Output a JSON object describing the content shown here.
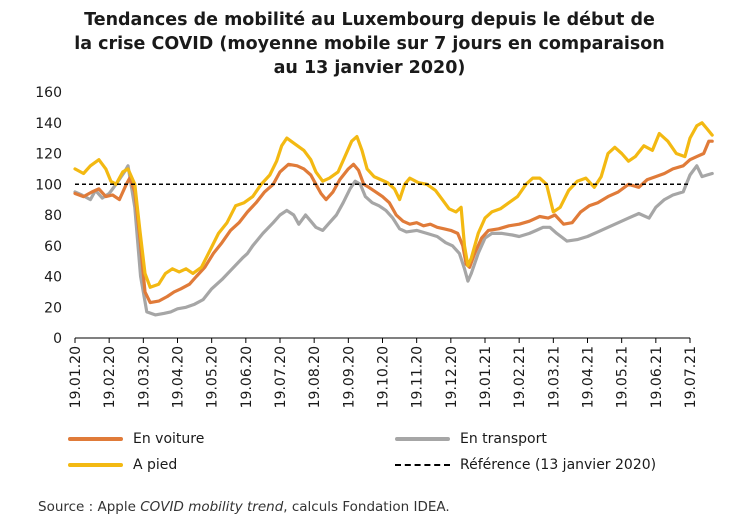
{
  "chart_data": {
    "type": "line",
    "title_lines": [
      "Tendances de mobilité au Luxembourg depuis le début de",
      "la crise COVID (moyenne mobile sur 7 jours en comparaison",
      "au 13 janvier 2020)"
    ],
    "ylim": [
      0,
      160
    ],
    "yticks": [
      "0",
      "20",
      "40",
      "60",
      "80",
      "100",
      "120",
      "140",
      "160"
    ],
    "reference_value": 100,
    "x_start": "2020-01-19",
    "x_end": "2021-07-19",
    "x_tick_labels": [
      "19.01.20",
      "19.02.20",
      "19.03.20",
      "19.04.20",
      "19.05.20",
      "19.06.20",
      "19.07.20",
      "19.08.20",
      "19.09.20",
      "19.10.20",
      "19.11.20",
      "19.12.20",
      "19.01.21",
      "19.02.21",
      "19.03.21",
      "19.04.21",
      "19.05.21",
      "19.06.21",
      "19.07.21"
    ],
    "series": [
      {
        "name": "En transport",
        "color": "#a6a6a6",
        "points": [
          [
            0,
            95
          ],
          [
            0.2,
            93
          ],
          [
            0.45,
            90
          ],
          [
            0.6,
            96
          ],
          [
            0.8,
            91
          ],
          [
            1,
            94
          ],
          [
            1.2,
            100
          ],
          [
            1.45,
            108
          ],
          [
            1.55,
            112
          ],
          [
            1.75,
            85
          ],
          [
            1.92,
            40
          ],
          [
            2.1,
            17
          ],
          [
            2.35,
            15
          ],
          [
            2.6,
            16
          ],
          [
            2.8,
            17
          ],
          [
            3,
            19
          ],
          [
            3.25,
            20
          ],
          [
            3.5,
            22
          ],
          [
            3.75,
            25
          ],
          [
            4,
            32
          ],
          [
            4.3,
            38
          ],
          [
            4.6,
            45
          ],
          [
            4.9,
            52
          ],
          [
            5.05,
            55
          ],
          [
            5.2,
            60
          ],
          [
            5.5,
            68
          ],
          [
            5.8,
            75
          ],
          [
            6,
            80
          ],
          [
            6.2,
            83
          ],
          [
            6.4,
            80
          ],
          [
            6.55,
            74
          ],
          [
            6.75,
            80
          ],
          [
            6.9,
            76
          ],
          [
            7.05,
            72
          ],
          [
            7.25,
            70
          ],
          [
            7.45,
            75
          ],
          [
            7.65,
            80
          ],
          [
            7.85,
            88
          ],
          [
            8.05,
            97
          ],
          [
            8.2,
            102
          ],
          [
            8.35,
            100
          ],
          [
            8.5,
            92
          ],
          [
            8.7,
            88
          ],
          [
            8.9,
            86
          ],
          [
            9.1,
            83
          ],
          [
            9.3,
            78
          ],
          [
            9.5,
            71
          ],
          [
            9.7,
            69
          ],
          [
            10,
            70
          ],
          [
            10.3,
            68
          ],
          [
            10.6,
            66
          ],
          [
            10.85,
            62
          ],
          [
            11.05,
            60
          ],
          [
            11.25,
            55
          ],
          [
            11.4,
            45
          ],
          [
            11.5,
            37
          ],
          [
            11.6,
            42
          ],
          [
            11.8,
            55
          ],
          [
            12,
            65
          ],
          [
            12.2,
            68
          ],
          [
            12.5,
            68
          ],
          [
            12.8,
            67
          ],
          [
            13,
            66
          ],
          [
            13.3,
            68
          ],
          [
            13.5,
            70
          ],
          [
            13.7,
            72
          ],
          [
            13.9,
            72
          ],
          [
            14.1,
            68
          ],
          [
            14.4,
            63
          ],
          [
            14.7,
            64
          ],
          [
            15,
            66
          ],
          [
            15.3,
            69
          ],
          [
            15.6,
            72
          ],
          [
            15.9,
            75
          ],
          [
            16.2,
            78
          ],
          [
            16.5,
            81
          ],
          [
            16.8,
            78
          ],
          [
            17,
            85
          ],
          [
            17.25,
            90
          ],
          [
            17.5,
            93
          ],
          [
            17.8,
            95
          ],
          [
            18,
            106
          ],
          [
            18.2,
            112
          ],
          [
            18.35,
            105
          ],
          [
            18.5,
            106
          ],
          [
            18.65,
            107
          ]
        ]
      },
      {
        "name": "En voiture",
        "color": "#e07b39",
        "points": [
          [
            0,
            94
          ],
          [
            0.25,
            92
          ],
          [
            0.5,
            95
          ],
          [
            0.7,
            97
          ],
          [
            0.9,
            92
          ],
          [
            1.1,
            93
          ],
          [
            1.3,
            90
          ],
          [
            1.5,
            100
          ],
          [
            1.6,
            104
          ],
          [
            1.75,
            95
          ],
          [
            1.9,
            65
          ],
          [
            2.05,
            30
          ],
          [
            2.2,
            23
          ],
          [
            2.45,
            24
          ],
          [
            2.7,
            27
          ],
          [
            2.9,
            30
          ],
          [
            3.1,
            32
          ],
          [
            3.35,
            35
          ],
          [
            3.55,
            40
          ],
          [
            3.8,
            46
          ],
          [
            4.05,
            55
          ],
          [
            4.3,
            62
          ],
          [
            4.55,
            70
          ],
          [
            4.8,
            75
          ],
          [
            5.05,
            82
          ],
          [
            5.3,
            88
          ],
          [
            5.55,
            95
          ],
          [
            5.8,
            100
          ],
          [
            6,
            108
          ],
          [
            6.25,
            113
          ],
          [
            6.5,
            112
          ],
          [
            6.7,
            110
          ],
          [
            6.9,
            106
          ],
          [
            7.05,
            100
          ],
          [
            7.2,
            94
          ],
          [
            7.35,
            90
          ],
          [
            7.55,
            95
          ],
          [
            7.75,
            103
          ],
          [
            8,
            110
          ],
          [
            8.15,
            113
          ],
          [
            8.3,
            109
          ],
          [
            8.45,
            100
          ],
          [
            8.6,
            98
          ],
          [
            8.8,
            95
          ],
          [
            9,
            92
          ],
          [
            9.2,
            88
          ],
          [
            9.4,
            80
          ],
          [
            9.6,
            76
          ],
          [
            9.8,
            74
          ],
          [
            10,
            75
          ],
          [
            10.2,
            73
          ],
          [
            10.4,
            74
          ],
          [
            10.6,
            72
          ],
          [
            10.8,
            71
          ],
          [
            11,
            70
          ],
          [
            11.2,
            68
          ],
          [
            11.35,
            60
          ],
          [
            11.45,
            48
          ],
          [
            11.55,
            46
          ],
          [
            11.7,
            55
          ],
          [
            11.9,
            65
          ],
          [
            12.1,
            70
          ],
          [
            12.4,
            71
          ],
          [
            12.7,
            73
          ],
          [
            13,
            74
          ],
          [
            13.3,
            76
          ],
          [
            13.6,
            79
          ],
          [
            13.85,
            78
          ],
          [
            14.05,
            80
          ],
          [
            14.3,
            74
          ],
          [
            14.55,
            75
          ],
          [
            14.8,
            82
          ],
          [
            15.05,
            86
          ],
          [
            15.3,
            88
          ],
          [
            15.6,
            92
          ],
          [
            15.9,
            95
          ],
          [
            16.2,
            100
          ],
          [
            16.5,
            98
          ],
          [
            16.75,
            103
          ],
          [
            17,
            105
          ],
          [
            17.25,
            107
          ],
          [
            17.5,
            110
          ],
          [
            17.8,
            112
          ],
          [
            18,
            116
          ],
          [
            18.2,
            118
          ],
          [
            18.4,
            120
          ],
          [
            18.55,
            128
          ],
          [
            18.65,
            128
          ]
        ]
      },
      {
        "name": "A pied",
        "color": "#f3b912",
        "points": [
          [
            0,
            110
          ],
          [
            0.25,
            107
          ],
          [
            0.45,
            112
          ],
          [
            0.7,
            116
          ],
          [
            0.9,
            110
          ],
          [
            1.05,
            102
          ],
          [
            1.2,
            100
          ],
          [
            1.4,
            108
          ],
          [
            1.55,
            110
          ],
          [
            1.75,
            100
          ],
          [
            1.9,
            70
          ],
          [
            2.05,
            42
          ],
          [
            2.2,
            33
          ],
          [
            2.45,
            35
          ],
          [
            2.65,
            42
          ],
          [
            2.85,
            45
          ],
          [
            3.05,
            43
          ],
          [
            3.25,
            45
          ],
          [
            3.45,
            42
          ],
          [
            3.7,
            46
          ],
          [
            3.95,
            57
          ],
          [
            4.2,
            68
          ],
          [
            4.45,
            75
          ],
          [
            4.7,
            86
          ],
          [
            4.95,
            88
          ],
          [
            5.2,
            92
          ],
          [
            5.45,
            100
          ],
          [
            5.7,
            106
          ],
          [
            5.9,
            115
          ],
          [
            6.05,
            125
          ],
          [
            6.2,
            130
          ],
          [
            6.45,
            126
          ],
          [
            6.7,
            122
          ],
          [
            6.9,
            116
          ],
          [
            7.05,
            108
          ],
          [
            7.25,
            102
          ],
          [
            7.45,
            104
          ],
          [
            7.7,
            108
          ],
          [
            7.9,
            118
          ],
          [
            8.1,
            128
          ],
          [
            8.25,
            131
          ],
          [
            8.4,
            122
          ],
          [
            8.55,
            110
          ],
          [
            8.75,
            105
          ],
          [
            8.95,
            103
          ],
          [
            9.15,
            101
          ],
          [
            9.35,
            97
          ],
          [
            9.5,
            90
          ],
          [
            9.65,
            100
          ],
          [
            9.8,
            104
          ],
          [
            10.05,
            101
          ],
          [
            10.3,
            100
          ],
          [
            10.55,
            96
          ],
          [
            10.75,
            90
          ],
          [
            10.95,
            84
          ],
          [
            11.15,
            82
          ],
          [
            11.3,
            85
          ],
          [
            11.4,
            60
          ],
          [
            11.5,
            47
          ],
          [
            11.6,
            52
          ],
          [
            11.8,
            68
          ],
          [
            12,
            78
          ],
          [
            12.2,
            82
          ],
          [
            12.45,
            84
          ],
          [
            12.7,
            88
          ],
          [
            12.95,
            92
          ],
          [
            13.2,
            100
          ],
          [
            13.4,
            104
          ],
          [
            13.6,
            104
          ],
          [
            13.8,
            100
          ],
          [
            14,
            82
          ],
          [
            14.2,
            85
          ],
          [
            14.45,
            96
          ],
          [
            14.7,
            102
          ],
          [
            14.95,
            104
          ],
          [
            15.2,
            98
          ],
          [
            15.4,
            105
          ],
          [
            15.6,
            120
          ],
          [
            15.8,
            124
          ],
          [
            16,
            120
          ],
          [
            16.2,
            115
          ],
          [
            16.4,
            118
          ],
          [
            16.65,
            125
          ],
          [
            16.9,
            122
          ],
          [
            17.1,
            133
          ],
          [
            17.35,
            128
          ],
          [
            17.6,
            120
          ],
          [
            17.85,
            118
          ],
          [
            18,
            130
          ],
          [
            18.2,
            138
          ],
          [
            18.35,
            140
          ],
          [
            18.5,
            136
          ],
          [
            18.65,
            132
          ]
        ]
      }
    ],
    "legend": [
      {
        "label": "En voiture",
        "color": "#e07b39",
        "style": "solid"
      },
      {
        "label": "En transport",
        "color": "#a6a6a6",
        "style": "solid"
      },
      {
        "label": "A pied",
        "color": "#f3b912",
        "style": "solid"
      },
      {
        "label": "Référence (13 janvier 2020)",
        "color": "#000000",
        "style": "dashed"
      }
    ],
    "source_prefix": "Source : Apple ",
    "source_italic": "COVID mobility trend",
    "source_suffix": ", calculs Fondation IDEA."
  }
}
